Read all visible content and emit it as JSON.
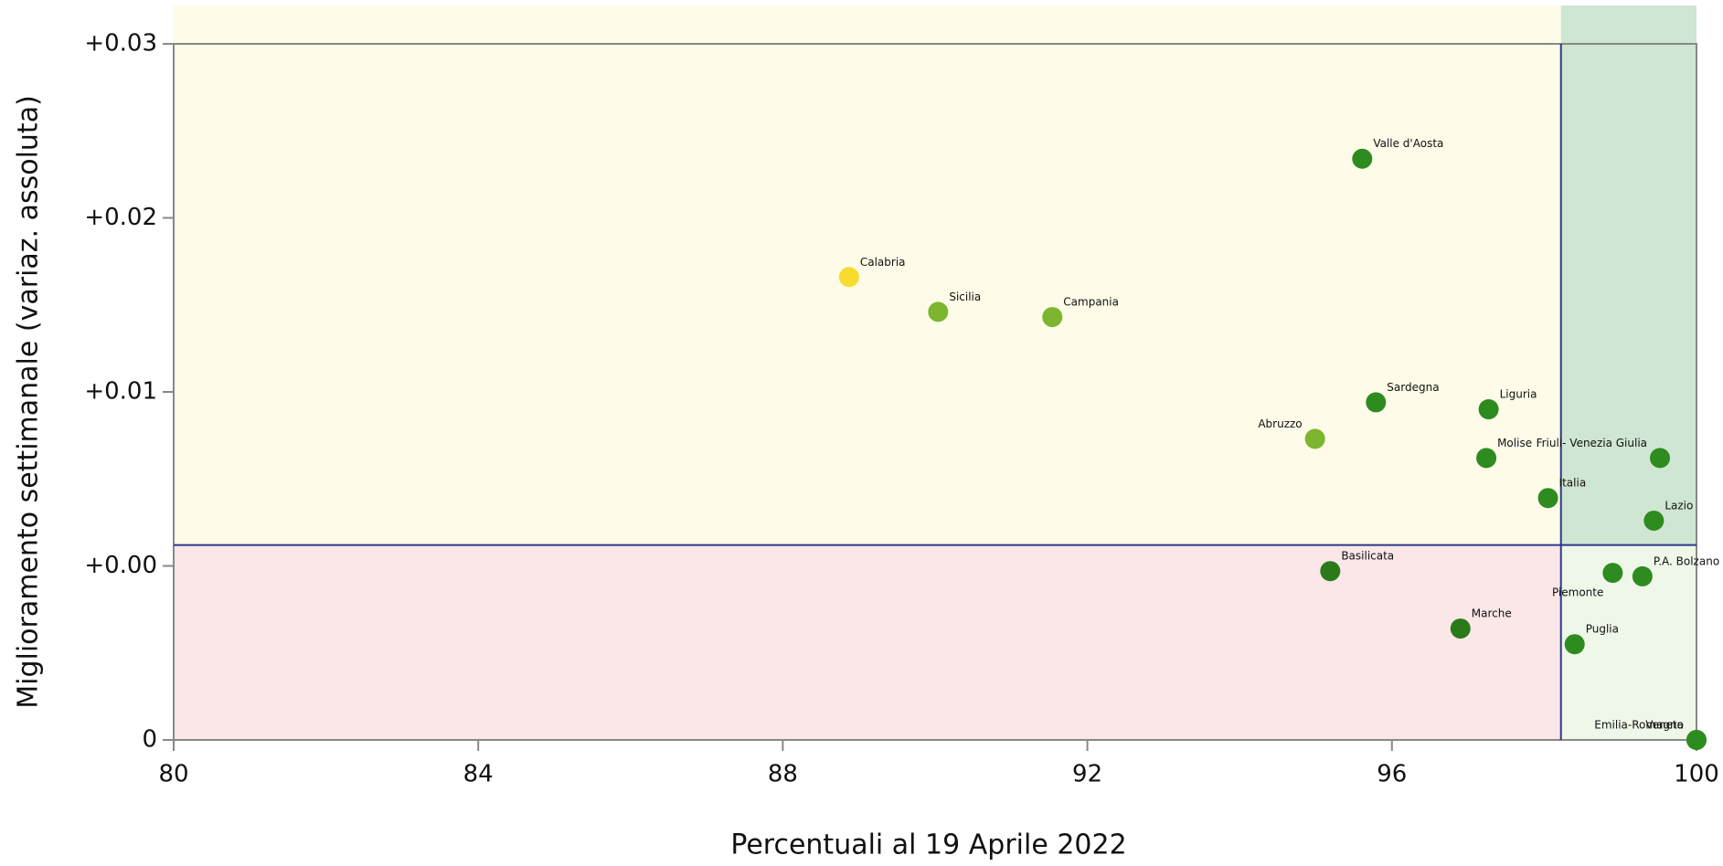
{
  "chart_data": {
    "type": "scatter",
    "x_label": "Percentuali al 19 Aprile 2022",
    "y_label": "Miglioramento settimanale (variaz. assoluta)",
    "xlim": [
      80,
      100
    ],
    "xticks": [
      80,
      84,
      88,
      92,
      96,
      100
    ],
    "ylim": [
      -0.01,
      0.03
    ],
    "yticks": [
      {
        "value": 0.03,
        "label": "+0.03"
      },
      {
        "value": 0.02,
        "label": "+0.02"
      },
      {
        "value": 0.01,
        "label": "+0.01"
      },
      {
        "value": 0.0,
        "label": "+0.00"
      },
      {
        "value": -0.01,
        "label": "0"
      }
    ],
    "reference_lines": {
      "x": 98.22,
      "y": 0.0012,
      "color": "#2b3a8c"
    },
    "quadrant_colors": {
      "top_left": "#fefbe8",
      "top_right": "#cfe6d2",
      "bottom_left": "#fbe6e8",
      "bottom_right": "#eff7e9"
    },
    "points": [
      {
        "label": "Valle d'Aosta",
        "x": 95.61,
        "y": 0.0234,
        "color": "#2e8b1f"
      },
      {
        "label": "Calabria",
        "x": 88.87,
        "y": 0.0166,
        "color": "#f7dc2e"
      },
      {
        "label": "Sicilia",
        "x": 90.04,
        "y": 0.0146,
        "color": "#7db52f"
      },
      {
        "label": "Campania",
        "x": 91.54,
        "y": 0.0143,
        "color": "#7db52f"
      },
      {
        "label": "Sardegna",
        "x": 95.79,
        "y": 0.0094,
        "color": "#2e8b1f"
      },
      {
        "label": "Liguria",
        "x": 97.27,
        "y": 0.009,
        "color": "#2e8b1f"
      },
      {
        "label": "Abruzzo",
        "x": 94.99,
        "y": 0.0073,
        "color": "#7db52f"
      },
      {
        "label": "Molise",
        "x": 97.24,
        "y": 0.0062,
        "color": "#2e8b1f"
      },
      {
        "label": "Friuli- Venezia Giulia",
        "x": 99.52,
        "y": 0.0062,
        "color": "#2e8b1f"
      },
      {
        "label": "Italia",
        "x": 98.05,
        "y": 0.0039,
        "color": "#2e8b1f"
      },
      {
        "label": "Lazio",
        "x": 99.44,
        "y": 0.0026,
        "color": "#2e8b1f"
      },
      {
        "label": "Basilicata",
        "x": 95.19,
        "y": -0.0003,
        "color": "#2a7a1a"
      },
      {
        "label": "Piemonte",
        "x": 98.9,
        "y": -0.0004,
        "color": "#2e8b1f"
      },
      {
        "label": "P.A. Bolzano",
        "x": 99.29,
        "y": -0.0006,
        "color": "#2e8b1f"
      },
      {
        "label": "Marche",
        "x": 96.9,
        "y": -0.0036,
        "color": "#2a7a1a"
      },
      {
        "label": "Puglia",
        "x": 98.4,
        "y": -0.0045,
        "color": "#2e8b1f"
      },
      {
        "label": "Emilia-Romagna",
        "x": 100,
        "y": -0.01,
        "color": "#2e8b1f"
      },
      {
        "label": "Veneto",
        "x": 100,
        "y": -0.01,
        "color": "#2e8b1f"
      }
    ]
  }
}
